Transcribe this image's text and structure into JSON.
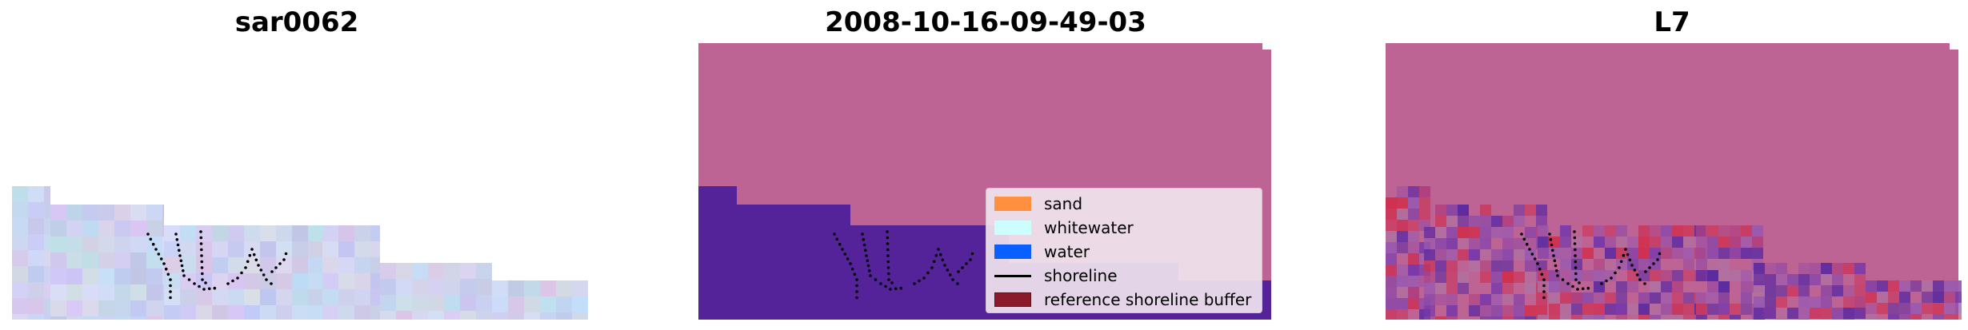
{
  "panels": [
    {
      "title": "sar0062"
    },
    {
      "title": "2008-10-16-09-49-03"
    },
    {
      "title": "L7"
    }
  ],
  "legend": {
    "items": [
      {
        "label": "sand",
        "color": "#ff9040",
        "kind": "patch"
      },
      {
        "label": "whitewater",
        "color": "#ccfefe",
        "kind": "patch"
      },
      {
        "label": "water",
        "color": "#0a5fff",
        "kind": "patch"
      },
      {
        "label": "shoreline",
        "color": "#000000",
        "kind": "line"
      },
      {
        "label": "reference shoreline buffer",
        "color": "#8b1a2a",
        "kind": "patch"
      }
    ]
  },
  "colors": {
    "background_region": "#bd6495",
    "water_region": "#54239a",
    "rgb_tile_base": "#c3c8ec"
  }
}
